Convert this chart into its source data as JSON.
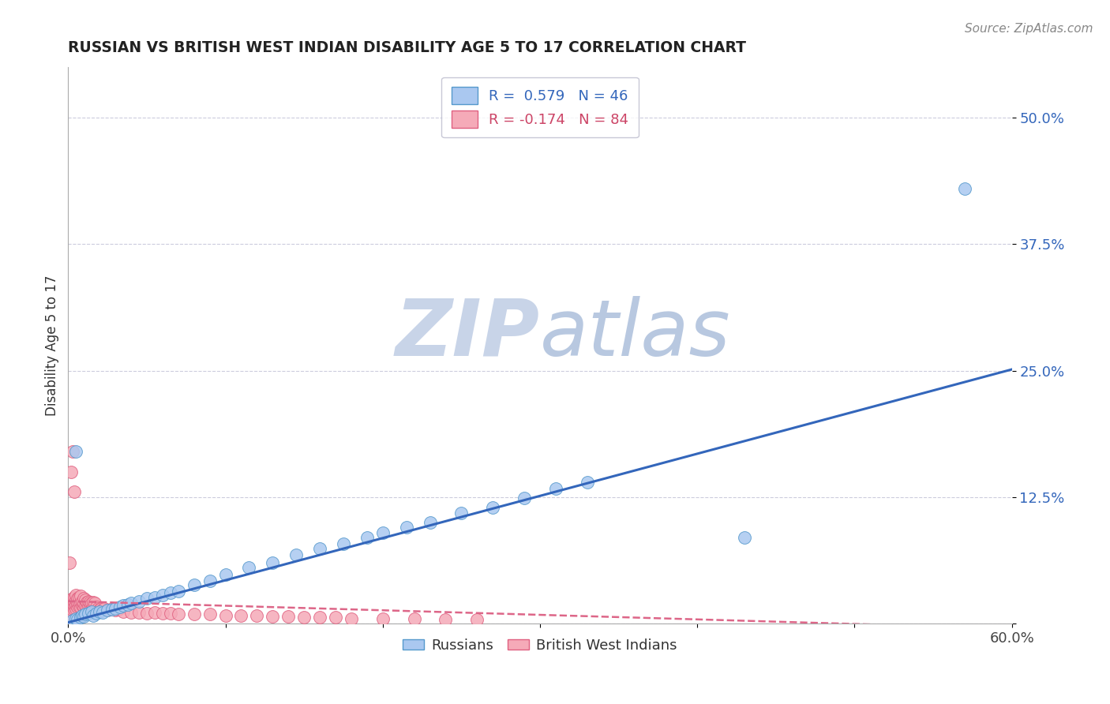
{
  "title": "RUSSIAN VS BRITISH WEST INDIAN DISABILITY AGE 5 TO 17 CORRELATION CHART",
  "source": "Source: ZipAtlas.com",
  "ylabel": "Disability Age 5 to 17",
  "xlim": [
    0.0,
    0.6
  ],
  "ylim": [
    0.0,
    0.55
  ],
  "xticks": [
    0.0,
    0.1,
    0.2,
    0.3,
    0.4,
    0.5,
    0.6
  ],
  "xtick_labels": [
    "0.0%",
    "",
    "",
    "",
    "",
    "",
    "60.0%"
  ],
  "ytick_labels": [
    "",
    "12.5%",
    "25.0%",
    "37.5%",
    "50.0%"
  ],
  "yticks": [
    0.0,
    0.125,
    0.25,
    0.375,
    0.5
  ],
  "legend_russian_R": "0.579",
  "legend_russian_N": "46",
  "legend_bwi_R": "-0.174",
  "legend_bwi_N": "84",
  "russian_color": "#aac8f0",
  "russian_edge_color": "#5599cc",
  "bwi_color": "#f5aab8",
  "bwi_edge_color": "#e06080",
  "russian_line_color": "#3366bb",
  "bwi_line_color": "#dd6688",
  "watermark_zip_color": "#c8d4e8",
  "watermark_atlas_color": "#b8c8e0",
  "background_color": "#ffffff",
  "rus_line_slope": 0.417,
  "rus_line_intercept": 0.001,
  "bwi_line_slope": -0.045,
  "bwi_line_intercept": 0.022,
  "russian_x": [
    0.003,
    0.005,
    0.006,
    0.008,
    0.009,
    0.01,
    0.011,
    0.013,
    0.015,
    0.016,
    0.018,
    0.02,
    0.022,
    0.025,
    0.028,
    0.03,
    0.033,
    0.035,
    0.038,
    0.04,
    0.045,
    0.05,
    0.055,
    0.06,
    0.065,
    0.07,
    0.08,
    0.09,
    0.1,
    0.115,
    0.13,
    0.145,
    0.16,
    0.175,
    0.19,
    0.2,
    0.215,
    0.23,
    0.25,
    0.27,
    0.29,
    0.31,
    0.33,
    0.43,
    0.57,
    0.005
  ],
  "russian_y": [
    0.003,
    0.005,
    0.004,
    0.006,
    0.008,
    0.007,
    0.009,
    0.01,
    0.012,
    0.008,
    0.01,
    0.012,
    0.011,
    0.013,
    0.014,
    0.015,
    0.016,
    0.018,
    0.019,
    0.02,
    0.022,
    0.025,
    0.026,
    0.028,
    0.03,
    0.032,
    0.038,
    0.042,
    0.048,
    0.055,
    0.06,
    0.068,
    0.074,
    0.079,
    0.085,
    0.09,
    0.095,
    0.1,
    0.109,
    0.115,
    0.124,
    0.133,
    0.14,
    0.085,
    0.43,
    0.17
  ],
  "bwi_x": [
    0.001,
    0.001,
    0.001,
    0.002,
    0.002,
    0.002,
    0.002,
    0.003,
    0.003,
    0.003,
    0.003,
    0.004,
    0.004,
    0.004,
    0.004,
    0.005,
    0.005,
    0.005,
    0.005,
    0.006,
    0.006,
    0.006,
    0.007,
    0.007,
    0.007,
    0.008,
    0.008,
    0.008,
    0.009,
    0.009,
    0.01,
    0.01,
    0.01,
    0.011,
    0.011,
    0.012,
    0.012,
    0.013,
    0.013,
    0.014,
    0.014,
    0.015,
    0.015,
    0.016,
    0.016,
    0.017,
    0.017,
    0.018,
    0.019,
    0.02,
    0.021,
    0.022,
    0.023,
    0.025,
    0.027,
    0.03,
    0.032,
    0.035,
    0.04,
    0.045,
    0.05,
    0.055,
    0.06,
    0.065,
    0.07,
    0.08,
    0.09,
    0.1,
    0.11,
    0.12,
    0.13,
    0.14,
    0.15,
    0.16,
    0.17,
    0.18,
    0.2,
    0.22,
    0.24,
    0.26,
    0.002,
    0.003,
    0.001,
    0.004
  ],
  "bwi_y": [
    0.01,
    0.015,
    0.02,
    0.012,
    0.016,
    0.018,
    0.022,
    0.013,
    0.017,
    0.02,
    0.025,
    0.014,
    0.018,
    0.022,
    0.026,
    0.015,
    0.019,
    0.023,
    0.028,
    0.016,
    0.02,
    0.025,
    0.017,
    0.021,
    0.026,
    0.016,
    0.021,
    0.027,
    0.018,
    0.022,
    0.016,
    0.02,
    0.025,
    0.017,
    0.023,
    0.016,
    0.021,
    0.017,
    0.022,
    0.016,
    0.021,
    0.015,
    0.02,
    0.016,
    0.021,
    0.015,
    0.02,
    0.016,
    0.015,
    0.014,
    0.015,
    0.014,
    0.015,
    0.013,
    0.014,
    0.013,
    0.014,
    0.012,
    0.011,
    0.011,
    0.01,
    0.011,
    0.01,
    0.01,
    0.009,
    0.009,
    0.009,
    0.008,
    0.008,
    0.008,
    0.007,
    0.007,
    0.006,
    0.006,
    0.006,
    0.005,
    0.005,
    0.005,
    0.004,
    0.004,
    0.15,
    0.17,
    0.06,
    0.13
  ]
}
